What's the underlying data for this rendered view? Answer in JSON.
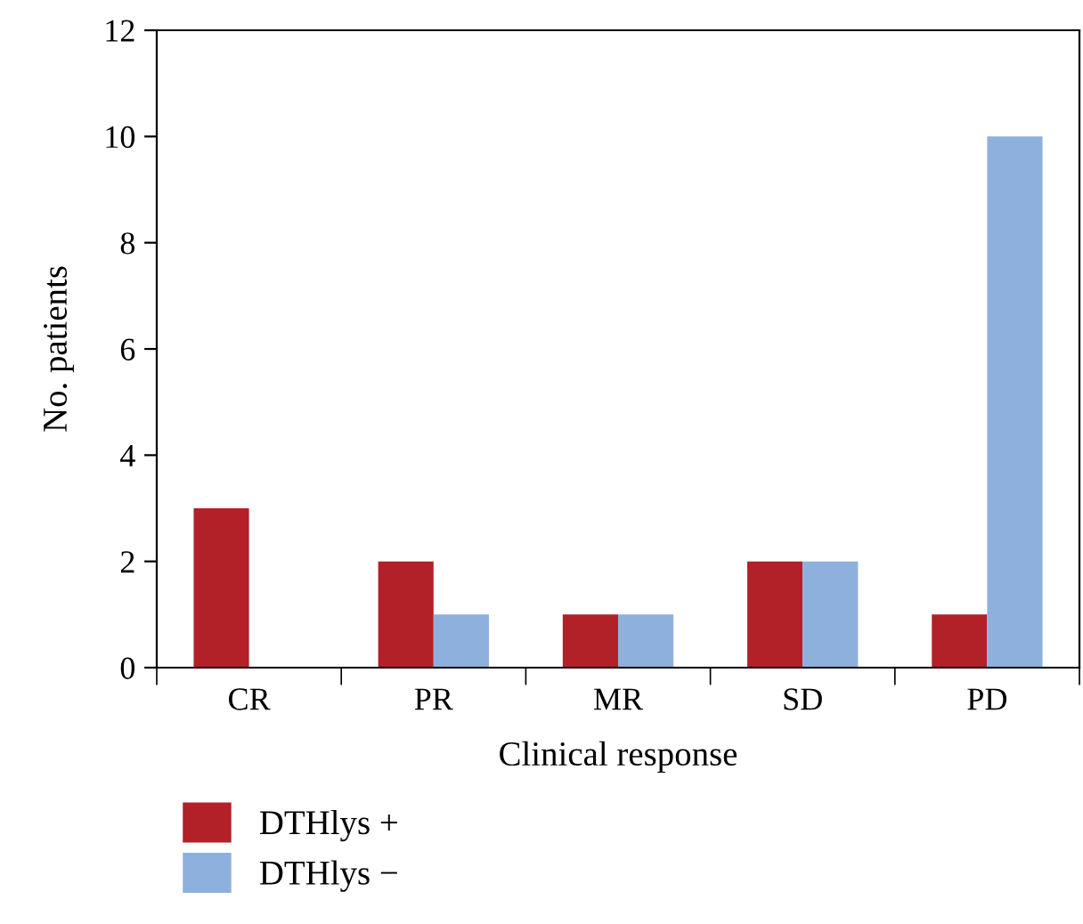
{
  "chart_data": {
    "type": "bar",
    "xlabel": "Clinical response",
    "ylabel": "No. patients",
    "categories": [
      "CR",
      "PR",
      "MR",
      "SD",
      "PD"
    ],
    "series": [
      {
        "name": "DTHlys +",
        "color": "#b22028",
        "values": [
          3,
          2,
          1,
          2,
          1
        ]
      },
      {
        "name": "DTHlys −",
        "color": "#8eb0dd",
        "values": [
          0,
          1,
          1,
          2,
          10
        ]
      }
    ],
    "ylim": [
      0,
      12
    ],
    "yticks": [
      0,
      2,
      4,
      6,
      8,
      10,
      12
    ],
    "grid": false,
    "legend": "bottom left"
  }
}
